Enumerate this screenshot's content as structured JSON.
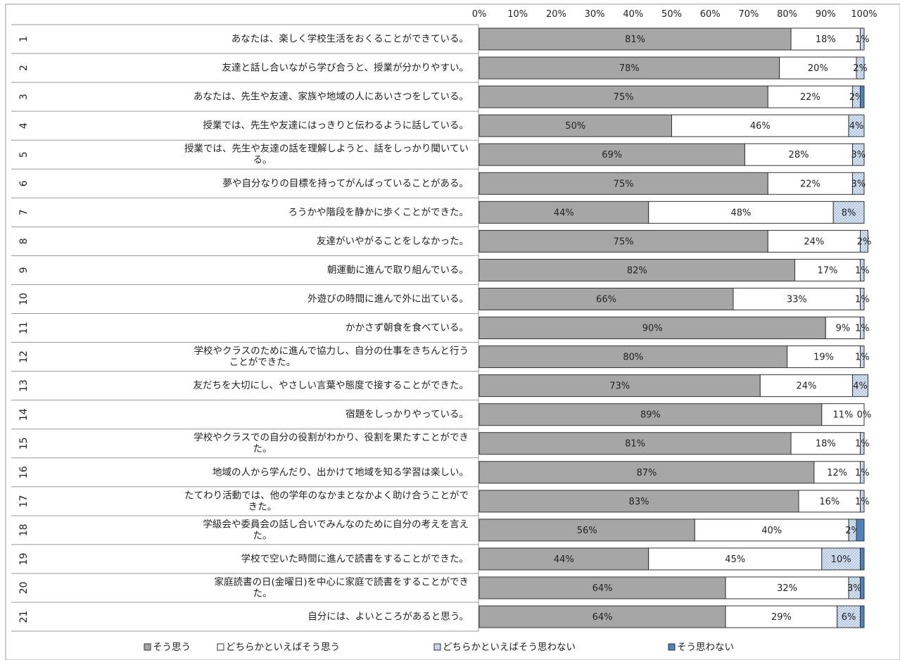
{
  "chart_data": {
    "type": "bar",
    "stacked": "percent",
    "orientation": "horizontal",
    "xlim": [
      0,
      100
    ],
    "x_ticks": [
      "0%",
      "10%",
      "20%",
      "30%",
      "40%",
      "50%",
      "60%",
      "70%",
      "80%",
      "90%",
      "100%"
    ],
    "legend_position": "bottom",
    "grid": false,
    "categories": [
      {
        "no": "1",
        "text": [
          "あなたは、楽しく学校生活をおくることができている。"
        ]
      },
      {
        "no": "2",
        "text": [
          "友達と話し合いながら学び合うと、授業が分かりやすい。"
        ]
      },
      {
        "no": "3",
        "text": [
          "あなたは、先生や友達、家族や地域の人にあいさつをしている。"
        ]
      },
      {
        "no": "4",
        "text": [
          "授業では、先生や友達にはっきりと伝わるように話している。"
        ]
      },
      {
        "no": "5",
        "text": [
          "授業では、先生や友達の話を理解しようと、話をしっかり聞いてい",
          "る。"
        ]
      },
      {
        "no": "6",
        "text": [
          "夢や自分なりの目標を持ってがんばっていることがある。"
        ]
      },
      {
        "no": "7",
        "text": [
          "ろうかや階段を静かに歩くことができた。"
        ]
      },
      {
        "no": "8",
        "text": [
          "友達がいやがることをしなかった。"
        ]
      },
      {
        "no": "9",
        "text": [
          "朝運動に進んで取り組んでいる。"
        ]
      },
      {
        "no": "10",
        "text": [
          "外遊びの時間に進んで外に出ている。"
        ]
      },
      {
        "no": "11",
        "text": [
          "かかさず朝食を食べている。"
        ]
      },
      {
        "no": "12",
        "text": [
          "学校やクラスのために進んで協力し、自分の仕事をきちんと行う",
          "ことができた。"
        ]
      },
      {
        "no": "13",
        "text": [
          "友だちを大切にし、やさしい言葉や態度で接することができた。"
        ]
      },
      {
        "no": "14",
        "text": [
          "宿題をしっかりやっている。"
        ]
      },
      {
        "no": "15",
        "text": [
          "学校やクラスでの自分の役割がわかり、役割を果たすことができ",
          "た。"
        ]
      },
      {
        "no": "16",
        "text": [
          "地域の人から学んだり、出かけて地域を知る学習は楽しい。"
        ]
      },
      {
        "no": "17",
        "text": [
          "たてわり活動では、他の学年のなかまとなかよく助け合うことがで",
          "きた。"
        ]
      },
      {
        "no": "18",
        "text": [
          "学級会や委員会の話し合いでみんなのために自分の考えを言え",
          "た。"
        ]
      },
      {
        "no": "19",
        "text": [
          "学校で空いた時間に進んで読書をすることができた。"
        ]
      },
      {
        "no": "20",
        "text": [
          "家庭読書の日(金曜日)を中心に家庭で読書をすることができ",
          "た。"
        ]
      },
      {
        "no": "21",
        "text": [
          "自分には、よいところがあると思う。"
        ]
      }
    ],
    "series": [
      {
        "name": "そう思う",
        "color": "#a6a6a6",
        "values": [
          81,
          78,
          75,
          50,
          69,
          75,
          44,
          75,
          82,
          66,
          90,
          80,
          73,
          89,
          81,
          87,
          83,
          56,
          44,
          64,
          64
        ]
      },
      {
        "name": "どちらかといえばそう思う",
        "color": "#ffffff",
        "values": [
          18,
          20,
          22,
          46,
          28,
          22,
          48,
          24,
          17,
          33,
          9,
          19,
          24,
          11,
          18,
          12,
          16,
          40,
          45,
          32,
          29
        ]
      },
      {
        "name": "どちらかといえばそう思わない",
        "color": "#dce6f2",
        "pattern": "dots",
        "values": [
          1,
          2,
          2,
          4,
          3,
          3,
          8,
          2,
          1,
          1,
          1,
          1,
          4,
          0,
          1,
          1,
          1,
          2,
          10,
          3,
          6
        ]
      },
      {
        "name": "そう思わない",
        "color": "#4f81bd",
        "values": [
          0,
          0,
          1,
          0,
          0,
          0,
          0,
          0,
          0,
          0,
          0,
          0,
          0,
          0,
          0,
          0,
          0,
          2,
          1,
          1,
          1
        ]
      }
    ]
  }
}
